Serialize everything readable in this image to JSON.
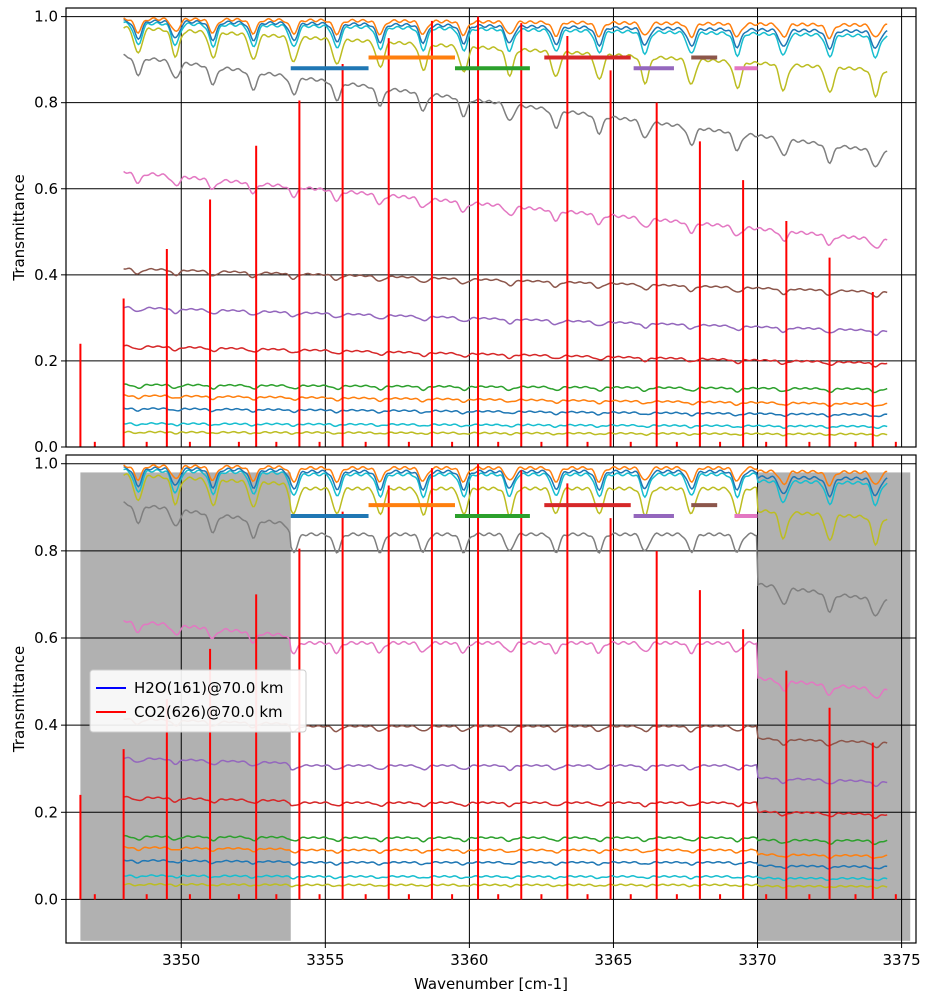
{
  "chart_data": [
    {
      "type": "line",
      "panel": "top",
      "xlabel": "",
      "ylabel": "Transmittance",
      "xlim": [
        3346,
        3375.5
      ],
      "ylim": [
        0,
        1.02
      ],
      "y_ticks": [
        "0.0",
        "0.2",
        "0.4",
        "0.6",
        "0.8",
        "1.0"
      ],
      "grid": true,
      "series_x_range": [
        3348,
        3374.5
      ],
      "series": [
        {
          "color": "#7f7f7f",
          "start": 0.91,
          "end": 0.685,
          "depth": 0.04
        },
        {
          "color": "#e377c2",
          "start": 0.64,
          "end": 0.48,
          "depth": 0.022
        },
        {
          "color": "#8c564b",
          "start": 0.415,
          "end": 0.36,
          "depth": 0.012
        },
        {
          "color": "#9467bd",
          "start": 0.325,
          "end": 0.27,
          "depth": 0.01
        },
        {
          "color": "#d62728",
          "start": 0.235,
          "end": 0.195,
          "depth": 0.008
        },
        {
          "color": "#2ca02c",
          "start": 0.145,
          "end": 0.135,
          "depth": 0.008
        },
        {
          "color": "#ff7f0e",
          "start": 0.12,
          "end": 0.1,
          "depth": 0.006
        },
        {
          "color": "#1f77b4",
          "start": 0.09,
          "end": 0.075,
          "depth": 0.005
        },
        {
          "color": "#17becf",
          "start": 0.055,
          "end": 0.048,
          "depth": 0.004
        },
        {
          "color": "#bcbd22",
          "start": 0.035,
          "end": 0.03,
          "depth": 0.003
        },
        {
          "color": "#bcbd22",
          "start": 0.975,
          "end": 0.875,
          "depth": 0.06
        },
        {
          "color": "#17becf",
          "start": 0.985,
          "end": 0.955,
          "depth": 0.05
        },
        {
          "color": "#1f77b4",
          "start": 0.99,
          "end": 0.965,
          "depth": 0.04
        },
        {
          "color": "#ff7f0e",
          "start": 0.995,
          "end": 0.98,
          "depth": 0.03
        }
      ],
      "absorption_line_positions": [
        3348.5,
        3349.8,
        3351.1,
        3352.5,
        3353.9,
        3355.4,
        3356.9,
        3358.4,
        3359.8,
        3361.4,
        3363.0,
        3364.5,
        3366.1,
        3367.7,
        3369.3,
        3370.9,
        3372.5,
        3374.1
      ],
      "co2_lines": [
        {
          "x": 3346.5,
          "y": 0.24
        },
        {
          "x": 3348.0,
          "y": 0.345
        },
        {
          "x": 3349.5,
          "y": 0.46
        },
        {
          "x": 3351.0,
          "y": 0.575
        },
        {
          "x": 3352.6,
          "y": 0.7
        },
        {
          "x": 3354.1,
          "y": 0.805
        },
        {
          "x": 3355.6,
          "y": 0.89
        },
        {
          "x": 3357.2,
          "y": 0.95
        },
        {
          "x": 3358.7,
          "y": 0.99
        },
        {
          "x": 3360.3,
          "y": 1.0
        },
        {
          "x": 3361.8,
          "y": 0.985
        },
        {
          "x": 3363.4,
          "y": 0.955
        },
        {
          "x": 3364.9,
          "y": 0.875
        },
        {
          "x": 3366.5,
          "y": 0.8
        },
        {
          "x": 3368.0,
          "y": 0.71
        },
        {
          "x": 3369.5,
          "y": 0.62
        },
        {
          "x": 3371.0,
          "y": 0.525
        },
        {
          "x": 3372.5,
          "y": 0.44
        },
        {
          "x": 3374.0,
          "y": 0.36
        }
      ],
      "co2_small_lines": [
        3347.0,
        3348.8,
        3350.3,
        3352.0,
        3353.3,
        3354.8,
        3356.4,
        3357.9,
        3359.4,
        3361.0,
        3362.5,
        3364.1,
        3365.6,
        3367.2,
        3368.7,
        3370.3,
        3371.8,
        3373.4,
        3374.8
      ],
      "segments": [
        {
          "x1": 3353.8,
          "x2": 3356.5,
          "y": 0.88,
          "color": "#1f77b4"
        },
        {
          "x1": 3356.5,
          "x2": 3359.5,
          "y": 0.905,
          "color": "#ff7f0e"
        },
        {
          "x1": 3359.5,
          "x2": 3362.1,
          "y": 0.88,
          "color": "#2ca02c"
        },
        {
          "x1": 3362.6,
          "x2": 3365.6,
          "y": 0.905,
          "color": "#d62728"
        },
        {
          "x1": 3365.7,
          "x2": 3367.1,
          "y": 0.88,
          "color": "#9467bd"
        },
        {
          "x1": 3367.7,
          "x2": 3368.6,
          "y": 0.905,
          "color": "#8c564b"
        },
        {
          "x1": 3369.2,
          "x2": 3370.0,
          "y": 0.88,
          "color": "#e377c2"
        }
      ]
    },
    {
      "type": "line",
      "panel": "bottom",
      "xlabel": "Wavenumber [cm-1]",
      "ylabel": "Transmittance",
      "xlim": [
        3346,
        3375.5
      ],
      "ylim": [
        -0.1,
        1.02
      ],
      "y_ticks": [
        "0.0",
        "0.2",
        "0.4",
        "0.6",
        "0.8",
        "1.0"
      ],
      "x_ticks": [
        "3350",
        "3355",
        "3360",
        "3365",
        "3370",
        "3375"
      ],
      "grid": true,
      "shaded_regions": [
        [
          3346.5,
          3353.8
        ],
        [
          3370.0,
          3375.3
        ]
      ],
      "flat_region": [
        3353.8,
        3370.0
      ],
      "legend": {
        "placement": "center-left",
        "entries": [
          {
            "label": "H2O(161)@70.0 km",
            "color": "#0000ff"
          },
          {
            "label": "CO2(626)@70.0 km",
            "color": "#ff0000"
          }
        ]
      }
    }
  ]
}
